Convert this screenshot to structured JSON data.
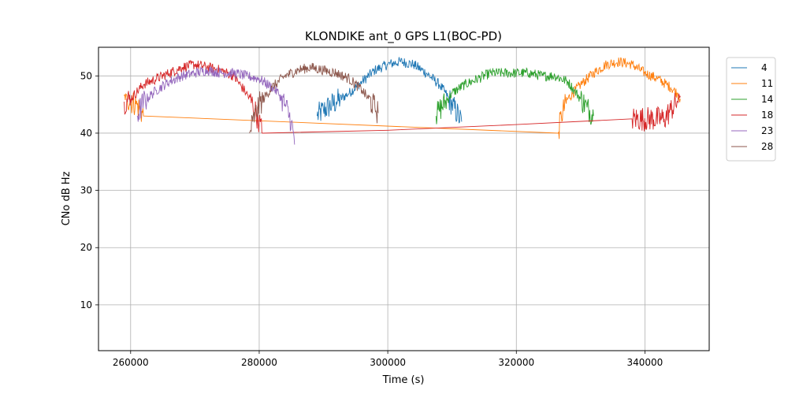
{
  "chart_data": {
    "type": "line",
    "title": "KLONDIKE ant_0 GPS L1(BOC-PD)",
    "xlabel": "Time (s)",
    "ylabel": "CNo dB Hz",
    "xlim": [
      255000,
      350000
    ],
    "ylim": [
      2,
      55
    ],
    "xticks": [
      260000,
      280000,
      300000,
      320000,
      340000
    ],
    "yticks": [
      10,
      20,
      30,
      40,
      50
    ],
    "grid": true,
    "legend": "outside-right-top",
    "series": [
      {
        "name": "4",
        "color": "#1f77b4",
        "x": [
          289000,
          290000,
          292000,
          294000,
          296000,
          298000,
          300000,
          302000,
          304000,
          306000,
          308000,
          309000,
          310000,
          311000,
          311500
        ],
        "y": [
          43,
          44,
          45.5,
          47,
          49,
          51,
          52,
          52.5,
          52,
          50.5,
          48.5,
          47,
          45,
          43,
          42
        ]
      },
      {
        "name": "11",
        "color": "#ff7f0e",
        "x": [
          259000,
          260000,
          261000,
          262000,
          326500,
          327000,
          328000,
          330000,
          332000,
          334000,
          336000,
          338000,
          340000,
          342000,
          344000,
          345000,
          345500
        ],
        "y": [
          46.5,
          45.5,
          45,
          43,
          40,
          43,
          46,
          48.5,
          50.5,
          52,
          52.5,
          52,
          50.5,
          49.5,
          48,
          47,
          46
        ]
      },
      {
        "name": "14",
        "color": "#2ca02c",
        "x": [
          307500,
          308000,
          309000,
          310000,
          312000,
          314000,
          316000,
          318000,
          320000,
          322000,
          324000,
          326000,
          328000,
          329000,
          330000,
          331000,
          332000
        ],
        "y": [
          43,
          44,
          45.5,
          47,
          48.5,
          49.5,
          50.5,
          50.5,
          50.5,
          50.5,
          50,
          50,
          49,
          47.5,
          46,
          44.5,
          43
        ]
      },
      {
        "name": "18",
        "color": "#d62728",
        "x": [
          259000,
          260000,
          262000,
          264000,
          266000,
          268000,
          270000,
          272000,
          274000,
          276000,
          278000,
          279000,
          280000,
          280500,
          300000,
          320000,
          338000,
          343000,
          344000,
          345000,
          345500
        ],
        "y": [
          45.5,
          46,
          48.5,
          49.5,
          50.5,
          51.5,
          52,
          51.5,
          51,
          50,
          47,
          45,
          42,
          40,
          40.5,
          41.5,
          42.5,
          42.5,
          44,
          45.5,
          46.5
        ]
      },
      {
        "name": "23",
        "color": "#9467bd",
        "x": [
          261000,
          262000,
          264000,
          266000,
          268000,
          270000,
          272000,
          274000,
          276000,
          278000,
          280000,
          282000,
          283000,
          284000,
          285000,
          285500
        ],
        "y": [
          43,
          45.5,
          47.5,
          49,
          50,
          50.5,
          51,
          50.5,
          50.5,
          50,
          49.5,
          48,
          47,
          45,
          42,
          38
        ]
      },
      {
        "name": "28",
        "color": "#8c564b",
        "x": [
          278500,
          279000,
          280000,
          282000,
          284000,
          286000,
          288000,
          290000,
          292000,
          294000,
          296000,
          297000,
          298000,
          298500
        ],
        "y": [
          40,
          42,
          45,
          48,
          50,
          51,
          51.5,
          51,
          50.5,
          49.5,
          47.5,
          46,
          44.5,
          43.5
        ]
      }
    ]
  }
}
